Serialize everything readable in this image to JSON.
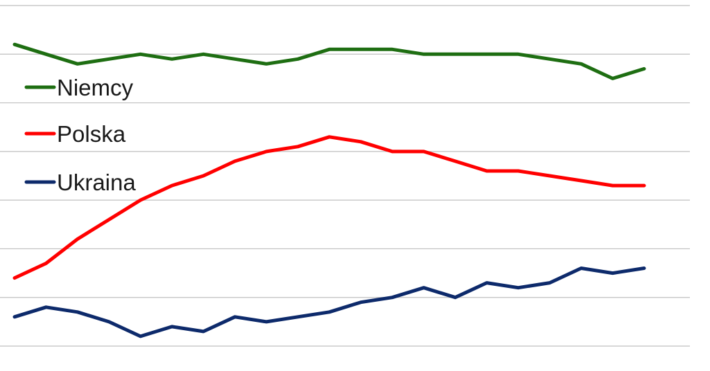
{
  "chart_data": {
    "type": "line",
    "title": "",
    "xlabel": "",
    "ylabel": "",
    "x": [
      1,
      2,
      3,
      4,
      5,
      6,
      7,
      8,
      9,
      10,
      11,
      12,
      13,
      14,
      15,
      16,
      17,
      18,
      19,
      20,
      21
    ],
    "ylim": [
      0,
      70
    ],
    "grid": true,
    "legend_position": "left",
    "series": [
      {
        "name": "Niemcy",
        "color": "#1e6e12",
        "values": [
          62,
          60,
          58,
          59,
          60,
          59,
          60,
          59,
          58,
          59,
          61,
          61,
          61,
          60,
          60,
          60,
          60,
          59,
          58,
          55,
          57
        ]
      },
      {
        "name": "Polska",
        "color": "#ff0000",
        "values": [
          14,
          17,
          22,
          26,
          30,
          33,
          35,
          38,
          40,
          41,
          43,
          42,
          40,
          40,
          38,
          36,
          36,
          35,
          34,
          33,
          33
        ]
      },
      {
        "name": "Ukraina",
        "color": "#0d2a6b",
        "values": [
          6,
          8,
          7,
          5,
          2,
          4,
          3,
          6,
          5,
          6,
          7,
          9,
          10,
          12,
          10,
          13,
          12,
          13,
          16,
          15,
          16
        ]
      }
    ]
  }
}
